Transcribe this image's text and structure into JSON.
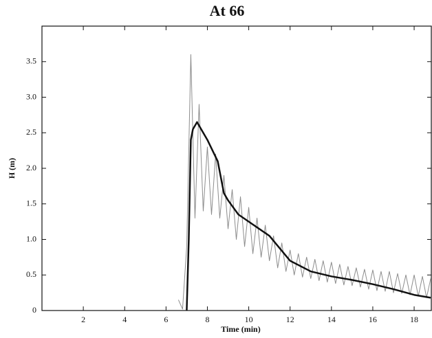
{
  "chart_data": {
    "type": "line",
    "title": "At 66",
    "xlabel": "Time (min)",
    "ylabel": "H (m)",
    "xlim": [
      0,
      18.83
    ],
    "xticks": [
      2,
      4,
      6,
      8,
      10,
      12,
      14,
      16,
      18
    ],
    "ylim": [
      0,
      4.0
    ],
    "yticks": [
      0,
      0.5,
      {
        "value": 1,
        "label": "1.0"
      },
      1.5,
      {
        "value": 2,
        "label": "2.0"
      },
      2.5,
      {
        "value": 3,
        "label": "3.0"
      },
      3.5
    ],
    "series": [
      {
        "color": "#8c8c8c",
        "width": 1,
        "x": [
          6.6,
          6.8,
          7.0,
          7.2,
          7.4,
          7.6,
          7.8,
          8.0,
          8.2,
          8.4,
          8.6,
          8.8,
          9.0,
          9.2,
          9.4,
          9.6,
          9.8,
          10.0,
          10.2,
          10.4,
          10.6,
          10.8,
          11.0,
          11.2,
          11.4,
          11.6,
          11.8,
          12.0,
          12.2,
          12.4,
          12.6,
          12.8,
          13.0,
          13.2,
          13.4,
          13.6,
          13.8,
          14.0,
          14.2,
          14.4,
          14.6,
          14.8,
          15.0,
          15.2,
          15.4,
          15.6,
          15.8,
          16.0,
          16.2,
          16.4,
          16.6,
          16.8,
          17.0,
          17.2,
          17.4,
          17.6,
          17.8,
          18.0,
          18.2,
          18.4,
          18.6,
          18.8
        ],
        "values": [
          0.15,
          0.02,
          0.9,
          3.6,
          1.3,
          2.9,
          1.4,
          2.3,
          1.35,
          2.2,
          1.3,
          1.9,
          1.15,
          1.7,
          1.0,
          1.6,
          0.9,
          1.45,
          0.8,
          1.3,
          0.75,
          1.2,
          0.7,
          1.05,
          0.6,
          0.95,
          0.55,
          0.85,
          0.5,
          0.8,
          0.47,
          0.75,
          0.45,
          0.72,
          0.42,
          0.7,
          0.4,
          0.68,
          0.38,
          0.65,
          0.36,
          0.62,
          0.35,
          0.6,
          0.33,
          0.58,
          0.3,
          0.57,
          0.28,
          0.55,
          0.27,
          0.55,
          0.25,
          0.52,
          0.24,
          0.5,
          0.22,
          0.5,
          0.2,
          0.48,
          0.18,
          0.45
        ]
      },
      {
        "color": "#111111",
        "width": 2.5,
        "x": [
          7.0,
          7.1,
          7.2,
          7.3,
          7.5,
          8.0,
          8.5,
          8.8,
          9.0,
          9.5,
          10,
          11,
          12,
          13,
          14,
          15,
          16,
          17,
          18,
          18.8
        ],
        "values": [
          0,
          1.0,
          2.4,
          2.55,
          2.65,
          2.4,
          2.1,
          1.65,
          1.55,
          1.35,
          1.25,
          1.05,
          0.7,
          0.55,
          0.48,
          0.43,
          0.37,
          0.3,
          0.22,
          0.18
        ]
      }
    ]
  }
}
